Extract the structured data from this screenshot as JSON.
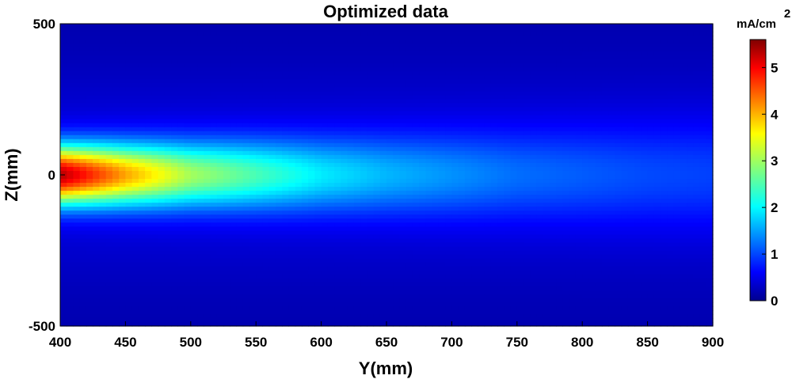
{
  "chart_data": {
    "type": "heatmap",
    "title": "Optimized data",
    "xlabel": "Y(mm)",
    "ylabel": "Z(mm)",
    "xlim": [
      400,
      900
    ],
    "ylim": [
      -500,
      500
    ],
    "xticks": [
      "400",
      "450",
      "500",
      "550",
      "600",
      "650",
      "700",
      "750",
      "800",
      "850",
      "900"
    ],
    "yticks": [
      "500",
      "0",
      "-500"
    ],
    "colormap": "jet",
    "colorbar": {
      "label": "mA/cm",
      "label_superscript": "2",
      "range": [
        0,
        5.6
      ],
      "ticks": [
        "0",
        "1",
        "2",
        "3",
        "4",
        "5"
      ]
    },
    "description_of_field": {
      "peak_value": 5.3,
      "peak_location": {
        "y": 400,
        "z": 0
      },
      "center_values_along_y": [
        {
          "y": 400,
          "value": 5.3
        },
        {
          "y": 450,
          "value": 4.0
        },
        {
          "y": 500,
          "value": 3.0
        },
        {
          "y": 550,
          "value": 2.5
        },
        {
          "y": 600,
          "value": 2.0
        },
        {
          "y": 650,
          "value": 1.7
        },
        {
          "y": 700,
          "value": 1.5
        },
        {
          "y": 750,
          "value": 1.3
        },
        {
          "y": 800,
          "value": 1.2
        },
        {
          "y": 850,
          "value": 1.1
        },
        {
          "y": 900,
          "value": 1.05
        }
      ],
      "background_value": 0.4
    }
  }
}
